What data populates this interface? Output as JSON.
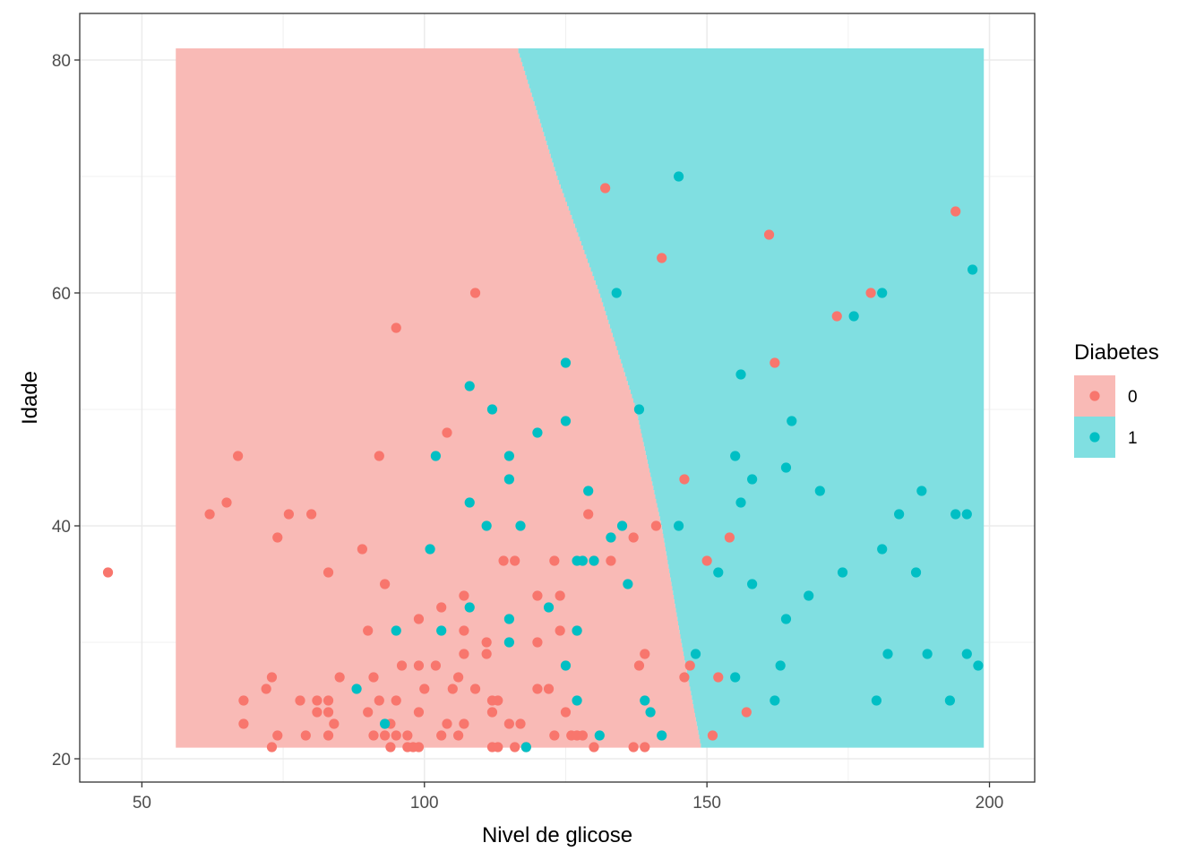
{
  "chart_data": {
    "type": "scatter",
    "xlabel": "Nivel de glicose",
    "ylabel": "Idade",
    "xlim": [
      39,
      208
    ],
    "ylim": [
      18,
      84
    ],
    "x_ticks": [
      50,
      100,
      150,
      200
    ],
    "y_ticks": [
      20,
      40,
      60,
      80
    ],
    "grid": true,
    "legend": {
      "title": "Diabetes",
      "placement": "right",
      "entries": [
        {
          "label": "0",
          "point_color": "#F8766D",
          "fill_color": "#F9BAB6"
        },
        {
          "label": "1",
          "point_color": "#00BFC4",
          "fill_color": "#80DFE1"
        }
      ]
    },
    "decision_regions": {
      "x_range": [
        56,
        199
      ],
      "y_range": [
        21,
        81
      ],
      "boundary": [
        {
          "y": 81,
          "x": 116.5
        },
        {
          "y": 70,
          "x": 123.5
        },
        {
          "y": 60,
          "x": 131
        },
        {
          "y": 50,
          "x": 137.5
        },
        {
          "y": 40,
          "x": 142
        },
        {
          "y": 30,
          "x": 145.5
        },
        {
          "y": 21,
          "x": 149
        }
      ],
      "left_class": "0",
      "right_class": "1"
    },
    "series": [
      {
        "name": "0",
        "points": [
          [
            44,
            36
          ],
          [
            62,
            41
          ],
          [
            65,
            42
          ],
          [
            67,
            46
          ],
          [
            68,
            25
          ],
          [
            68,
            23
          ],
          [
            72,
            26
          ],
          [
            73,
            27
          ],
          [
            73,
            21
          ],
          [
            74,
            39
          ],
          [
            74,
            22
          ],
          [
            76,
            41
          ],
          [
            78,
            25
          ],
          [
            79,
            22
          ],
          [
            80,
            41
          ],
          [
            81,
            24
          ],
          [
            81,
            25
          ],
          [
            83,
            25
          ],
          [
            83,
            24
          ],
          [
            83,
            22
          ],
          [
            83,
            36
          ],
          [
            84,
            23
          ],
          [
            85,
            27
          ],
          [
            89,
            38
          ],
          [
            90,
            31
          ],
          [
            90,
            24
          ],
          [
            91,
            27
          ],
          [
            91,
            22
          ],
          [
            92,
            46
          ],
          [
            92,
            25
          ],
          [
            93,
            35
          ],
          [
            93,
            22
          ],
          [
            94,
            21
          ],
          [
            94,
            23
          ],
          [
            95,
            25
          ],
          [
            95,
            22
          ],
          [
            95,
            57
          ],
          [
            96,
            28
          ],
          [
            97,
            21
          ],
          [
            97,
            22
          ],
          [
            98,
            21
          ],
          [
            99,
            32
          ],
          [
            99,
            28
          ],
          [
            99,
            24
          ],
          [
            99,
            21
          ],
          [
            100,
            26
          ],
          [
            102,
            28
          ],
          [
            103,
            33
          ],
          [
            103,
            22
          ],
          [
            104,
            23
          ],
          [
            104,
            48
          ],
          [
            105,
            26
          ],
          [
            106,
            27
          ],
          [
            106,
            22
          ],
          [
            107,
            34
          ],
          [
            107,
            31
          ],
          [
            107,
            29
          ],
          [
            107,
            23
          ],
          [
            109,
            60
          ],
          [
            109,
            26
          ],
          [
            111,
            30
          ],
          [
            111,
            29
          ],
          [
            112,
            24
          ],
          [
            112,
            25
          ],
          [
            112,
            21
          ],
          [
            113,
            25
          ],
          [
            113,
            21
          ],
          [
            114,
            37
          ],
          [
            115,
            23
          ],
          [
            116,
            37
          ],
          [
            116,
            21
          ],
          [
            117,
            23
          ],
          [
            118,
            21
          ],
          [
            120,
            26
          ],
          [
            120,
            30
          ],
          [
            120,
            34
          ],
          [
            122,
            26
          ],
          [
            123,
            22
          ],
          [
            123,
            37
          ],
          [
            124,
            31
          ],
          [
            124,
            34
          ],
          [
            125,
            24
          ],
          [
            126,
            22
          ],
          [
            127,
            22
          ],
          [
            127,
            31
          ],
          [
            128,
            22
          ],
          [
            129,
            41
          ],
          [
            130,
            37
          ],
          [
            130,
            21
          ],
          [
            132,
            69
          ],
          [
            133,
            37
          ],
          [
            137,
            39
          ],
          [
            137,
            21
          ],
          [
            138,
            28
          ],
          [
            139,
            29
          ],
          [
            139,
            21
          ],
          [
            141,
            40
          ],
          [
            142,
            63
          ],
          [
            146,
            44
          ],
          [
            146,
            27
          ],
          [
            147,
            28
          ],
          [
            150,
            37
          ],
          [
            151,
            22
          ],
          [
            152,
            27
          ],
          [
            154,
            39
          ],
          [
            157,
            24
          ],
          [
            161,
            65
          ],
          [
            162,
            54
          ],
          [
            173,
            58
          ],
          [
            179,
            60
          ],
          [
            194,
            67
          ]
        ]
      },
      {
        "name": "1",
        "points": [
          [
            88,
            26
          ],
          [
            93,
            23
          ],
          [
            95,
            31
          ],
          [
            101,
            38
          ],
          [
            102,
            46
          ],
          [
            103,
            31
          ],
          [
            108,
            52
          ],
          [
            108,
            42
          ],
          [
            108,
            33
          ],
          [
            111,
            40
          ],
          [
            112,
            50
          ],
          [
            115,
            46
          ],
          [
            115,
            44
          ],
          [
            115,
            32
          ],
          [
            115,
            30
          ],
          [
            117,
            40
          ],
          [
            118,
            21
          ],
          [
            120,
            48
          ],
          [
            122,
            33
          ],
          [
            125,
            54
          ],
          [
            125,
            49
          ],
          [
            125,
            28
          ],
          [
            127,
            37
          ],
          [
            127,
            31
          ],
          [
            127,
            25
          ],
          [
            128,
            37
          ],
          [
            129,
            43
          ],
          [
            130,
            37
          ],
          [
            131,
            22
          ],
          [
            133,
            39
          ],
          [
            134,
            60
          ],
          [
            135,
            40
          ],
          [
            136,
            35
          ],
          [
            138,
            50
          ],
          [
            139,
            25
          ],
          [
            140,
            24
          ],
          [
            142,
            22
          ],
          [
            145,
            70
          ],
          [
            145,
            40
          ],
          [
            148,
            29
          ],
          [
            152,
            36
          ],
          [
            155,
            46
          ],
          [
            155,
            27
          ],
          [
            156,
            53
          ],
          [
            156,
            42
          ],
          [
            158,
            44
          ],
          [
            158,
            35
          ],
          [
            162,
            25
          ],
          [
            163,
            28
          ],
          [
            164,
            45
          ],
          [
            164,
            32
          ],
          [
            165,
            49
          ],
          [
            168,
            34
          ],
          [
            170,
            43
          ],
          [
            174,
            36
          ],
          [
            176,
            58
          ],
          [
            180,
            25
          ],
          [
            181,
            60
          ],
          [
            181,
            38
          ],
          [
            182,
            29
          ],
          [
            184,
            41
          ],
          [
            187,
            36
          ],
          [
            188,
            43
          ],
          [
            189,
            29
          ],
          [
            193,
            25
          ],
          [
            194,
            41
          ],
          [
            196,
            41
          ],
          [
            196,
            29
          ],
          [
            197,
            62
          ],
          [
            198,
            28
          ]
        ]
      }
    ]
  }
}
